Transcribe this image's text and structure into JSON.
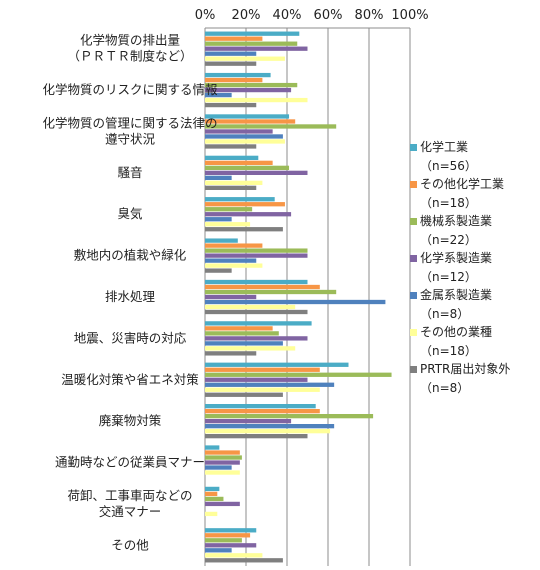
{
  "chart_data": {
    "type": "bar",
    "orientation": "horizontal",
    "title": "",
    "xlabel": "",
    "ylabel": "",
    "xlim": [
      0,
      100
    ],
    "x_ticks": [
      "0%",
      "20%",
      "40%",
      "60%",
      "80%",
      "100%"
    ],
    "x_axis_position": "top",
    "grid": true,
    "legend_position": "right",
    "categories": [
      [
        "化学物質の排出量",
        "（ＰＲＴＲ制度など）"
      ],
      [
        "化学物質のリスクに関する情報"
      ],
      [
        "化学物質の管理に関する法律の",
        "遵守状況"
      ],
      [
        "騒音"
      ],
      [
        "臭気"
      ],
      [
        "敷地内の植栽や緑化"
      ],
      [
        "排水処理"
      ],
      [
        "地震、災害時の対応"
      ],
      [
        "温暖化対策や省エネ対策"
      ],
      [
        "廃棄物対策"
      ],
      [
        "通勤時などの従業員マナー"
      ],
      [
        "荷卸、工事車両などの",
        "交通マナー"
      ],
      [
        "その他"
      ]
    ],
    "series": [
      {
        "name": "化学工業",
        "n": "（n=56）",
        "color": "#4BACC6",
        "values": [
          46,
          32,
          41,
          26,
          34,
          16,
          50,
          52,
          70,
          54,
          7,
          7,
          25
        ]
      },
      {
        "name": "その他化学工業",
        "n": "（n=18）",
        "color": "#F79646",
        "values": [
          28,
          28,
          44,
          33,
          39,
          28,
          56,
          33,
          56,
          56,
          17,
          6,
          22
        ]
      },
      {
        "name": "機械系製造業",
        "n": "（n=22）",
        "color": "#9BBB59",
        "values": [
          45,
          45,
          64,
          41,
          23,
          50,
          64,
          36,
          91,
          82,
          18,
          9,
          18
        ]
      },
      {
        "name": "化学系製造業",
        "n": "（n=12）",
        "color": "#8064A2",
        "values": [
          50,
          42,
          33,
          50,
          42,
          50,
          25,
          50,
          50,
          42,
          17,
          17,
          25
        ]
      },
      {
        "name": "金属系製造業",
        "n": "（n=8）",
        "color": "#4F81BD",
        "values": [
          25,
          13,
          38,
          13,
          13,
          25,
          88,
          38,
          63,
          63,
          13,
          0,
          13
        ]
      },
      {
        "name": "その他の業種",
        "n": "（n=18）",
        "color": "#FFFF99",
        "values": [
          39,
          50,
          39,
          28,
          22,
          28,
          44,
          44,
          56,
          61,
          17,
          6,
          28
        ]
      },
      {
        "name": "PRTR届出対象外",
        "n": "（n=8）",
        "color": "#7F7F7F",
        "values": [
          25,
          25,
          25,
          25,
          38,
          13,
          50,
          25,
          38,
          50,
          0,
          0,
          38
        ]
      }
    ]
  }
}
